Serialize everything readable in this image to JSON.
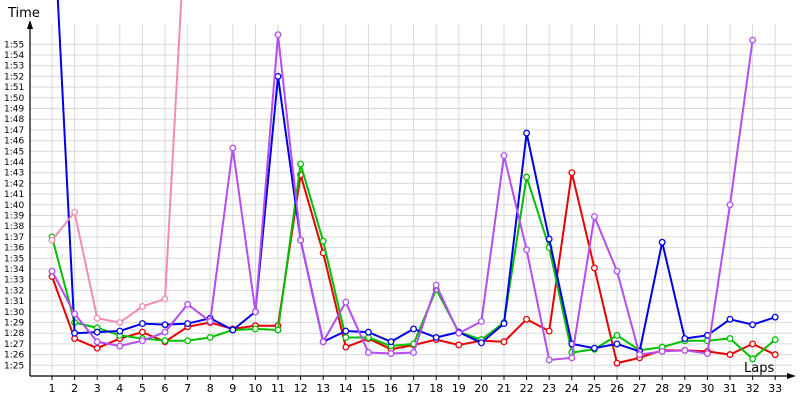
{
  "chart_data": {
    "type": "line",
    "title": "",
    "xlabel": "Laps",
    "ylabel": "Time",
    "grid": true,
    "x": [
      1,
      2,
      3,
      4,
      5,
      6,
      7,
      8,
      9,
      10,
      11,
      12,
      13,
      14,
      15,
      16,
      17,
      18,
      19,
      20,
      21,
      22,
      23,
      24,
      25,
      26,
      27,
      28,
      29,
      30,
      31,
      32,
      33
    ],
    "y_unit": "seconds",
    "ylim": [
      84,
      118
    ],
    "y_ticks": [
      "1:25",
      "1:26",
      "1:27",
      "1:28",
      "1:29",
      "1:30",
      "1:31",
      "1:32",
      "1:33",
      "1:34",
      "1:35",
      "1:36",
      "1:37",
      "1:38",
      "1:39",
      "1:40",
      "1:41",
      "1:42",
      "1:43",
      "1:44",
      "1:45",
      "1:46",
      "1:47",
      "1:48",
      "1:49",
      "1:50",
      "1:51",
      "1:52",
      "1:53",
      "1:54",
      "1:55"
    ],
    "series": [
      {
        "color": "#e60000",
        "values": [
          93.3,
          87.5,
          86.6,
          87.5,
          88.1,
          87.2,
          88.6,
          89.0,
          88.4,
          88.7,
          88.7,
          102.8,
          95.5,
          86.7,
          87.5,
          86.5,
          86.9,
          87.4,
          86.9,
          87.3,
          87.2,
          89.3,
          88.2,
          103.0,
          94.1,
          85.2,
          85.7,
          86.4,
          86.4,
          86.3,
          86.0,
          87.0,
          86.0
        ]
      },
      {
        "color": "#00c000",
        "values": [
          97.0,
          89.0,
          88.5,
          87.8,
          87.5,
          87.3,
          87.3,
          87.6,
          88.3,
          88.4,
          88.3,
          103.8,
          96.6,
          87.6,
          87.6,
          86.8,
          87.0,
          92.1,
          88.1,
          87.4,
          89.0,
          102.6,
          96.0,
          86.2,
          86.5,
          87.8,
          86.4,
          86.7,
          87.3,
          87.3,
          87.5,
          85.6,
          87.4
        ]
      },
      {
        "color": "#0000e6",
        "values": [
          130.0,
          88.0,
          88.1,
          88.2,
          88.9,
          88.8,
          88.9,
          89.4,
          88.3,
          90.0,
          112.0,
          96.7,
          87.2,
          88.2,
          88.1,
          87.2,
          88.4,
          87.6,
          88.1,
          87.1,
          88.9,
          106.7,
          96.8,
          87.0,
          86.6,
          87.0,
          86.3,
          96.5,
          87.5,
          87.8,
          89.3,
          88.8,
          89.5
        ]
      },
      {
        "color": "#b44ef0",
        "values": [
          93.8,
          89.8,
          87.2,
          86.8,
          87.3,
          88.1,
          90.7,
          89.1,
          105.3,
          90.0,
          115.9,
          96.7,
          87.2,
          90.9,
          86.2,
          86.1,
          86.2,
          92.5,
          88.0,
          89.1,
          104.6,
          95.8,
          85.5,
          85.7,
          98.9,
          93.8,
          86.0,
          86.3,
          86.4,
          86.1,
          100.0,
          115.4,
          null
        ]
      },
      {
        "color": "#f28cb4",
        "values": [
          96.7,
          99.3,
          89.4,
          89.0,
          90.5,
          91.2,
          130.0,
          null,
          null,
          null,
          null,
          null,
          null,
          null,
          null,
          null,
          null,
          null,
          null,
          null,
          null,
          null,
          null,
          null,
          null,
          null,
          null,
          null,
          null,
          null,
          null,
          null,
          null
        ]
      }
    ]
  }
}
